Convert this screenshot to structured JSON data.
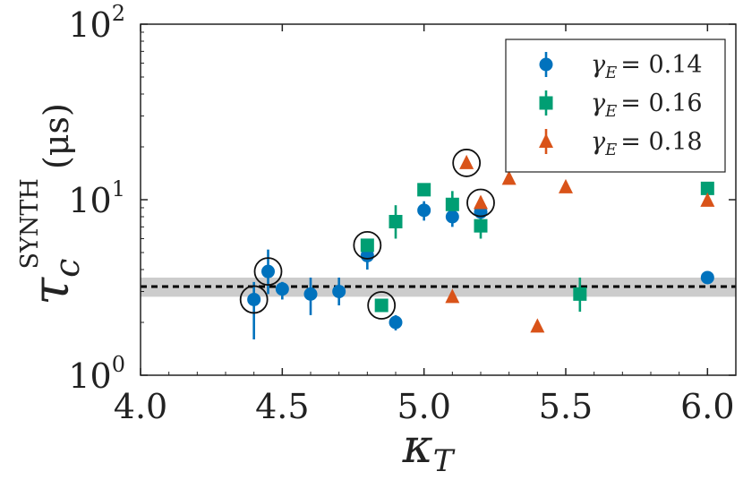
{
  "chart_data": {
    "type": "scatter",
    "title": "",
    "xlabel": "κ_T",
    "ylabel": "τ_c^SYNTH (μs)",
    "xlabel_parts": {
      "main": "κ",
      "sub": "T"
    },
    "ylabel_parts": {
      "main": "τ",
      "sub": "c",
      "sup": "SYNTH",
      "unit": "(μs)"
    },
    "xlim": [
      4.0,
      6.1
    ],
    "ylim": [
      1,
      100
    ],
    "yscale": "log",
    "xticks": [
      "4.0",
      "4.5",
      "5.0",
      "5.5",
      "6.0"
    ],
    "yticks": [
      {
        "base": "10",
        "exp": "0",
        "value": 1
      },
      {
        "base": "10",
        "exp": "1",
        "value": 10
      },
      {
        "base": "10",
        "exp": "2",
        "value": 100
      }
    ],
    "grid": false,
    "legend_position": "top-right",
    "series": [
      {
        "name": "γ_E = 0.14",
        "legend": {
          "symbol": "γ",
          "sub": "E",
          "value": "= 0.14"
        },
        "marker": "circle",
        "color": "#0072BD",
        "points": [
          {
            "x": 4.4,
            "y": 2.7,
            "lo": 1.6,
            "hi": 3.4,
            "circled": true
          },
          {
            "x": 4.45,
            "y": 3.9,
            "lo": 2.9,
            "hi": 5.2,
            "circled": true
          },
          {
            "x": 4.5,
            "y": 3.1,
            "lo": 2.7,
            "hi": 3.4,
            "circled": false
          },
          {
            "x": 4.6,
            "y": 2.9,
            "lo": 2.2,
            "hi": 3.6,
            "circled": false
          },
          {
            "x": 4.7,
            "y": 3.0,
            "lo": 2.5,
            "hi": 3.6,
            "circled": false
          },
          {
            "x": 4.8,
            "y": 4.8,
            "lo": 4.0,
            "hi": 5.6,
            "circled": false
          },
          {
            "x": 4.9,
            "y": 2.0,
            "lo": 1.8,
            "hi": 2.2,
            "circled": false
          },
          {
            "x": 5.0,
            "y": 8.7,
            "lo": 7.6,
            "hi": 9.8,
            "circled": false
          },
          {
            "x": 5.1,
            "y": 8.0,
            "lo": 7.0,
            "hi": 9.2,
            "circled": false
          },
          {
            "x": 5.2,
            "y": 8.5,
            "lo": 7.5,
            "hi": 9.6,
            "circled": false
          },
          {
            "x": 6.0,
            "y": 3.6,
            "lo": 3.4,
            "hi": 3.8,
            "circled": false
          }
        ]
      },
      {
        "name": "γ_E = 0.16",
        "legend": {
          "symbol": "γ",
          "sub": "E",
          "value": "= 0.16"
        },
        "marker": "square",
        "color": "#009E73",
        "points": [
          {
            "x": 4.8,
            "y": 5.5,
            "lo": 5.2,
            "hi": 5.8,
            "circled": true
          },
          {
            "x": 4.85,
            "y": 2.5,
            "lo": 2.4,
            "hi": 2.6,
            "circled": true
          },
          {
            "x": 4.9,
            "y": 7.5,
            "lo": 6.0,
            "hi": 9.3,
            "circled": false
          },
          {
            "x": 5.0,
            "y": 11.4,
            "lo": 10.8,
            "hi": 12.0,
            "circled": false
          },
          {
            "x": 5.1,
            "y": 9.4,
            "lo": 8.0,
            "hi": 11.2,
            "circled": false
          },
          {
            "x": 5.2,
            "y": 7.1,
            "lo": 6.0,
            "hi": 8.3,
            "circled": false
          },
          {
            "x": 5.55,
            "y": 2.9,
            "lo": 2.3,
            "hi": 3.6,
            "circled": false
          },
          {
            "x": 6.0,
            "y": 11.6,
            "lo": 11.0,
            "hi": 12.2,
            "circled": false
          }
        ]
      },
      {
        "name": "γ_E = 0.18",
        "legend": {
          "symbol": "γ",
          "sub": "E",
          "value": "= 0.18"
        },
        "marker": "triangle",
        "color": "#D95319",
        "points": [
          {
            "x": 5.1,
            "y": 2.8,
            "lo": 2.7,
            "hi": 2.9,
            "circled": false
          },
          {
            "x": 5.15,
            "y": 16.2,
            "lo": 15.5,
            "hi": 17.0,
            "circled": true
          },
          {
            "x": 5.2,
            "y": 9.6,
            "lo": 8.8,
            "hi": 10.4,
            "circled": true
          },
          {
            "x": 5.3,
            "y": 13.2,
            "lo": 12.6,
            "hi": 13.8,
            "circled": false
          },
          {
            "x": 5.4,
            "y": 1.9,
            "lo": 1.85,
            "hi": 1.95,
            "circled": false
          },
          {
            "x": 5.5,
            "y": 11.8,
            "lo": 11.2,
            "hi": 12.4,
            "circled": false
          },
          {
            "x": 6.0,
            "y": 9.9,
            "lo": 9.4,
            "hi": 10.4,
            "circled": false
          }
        ]
      }
    ],
    "reference_line": {
      "y": 3.2,
      "band": [
        2.8,
        3.6
      ],
      "style": "dashed",
      "color": "#000000",
      "band_color": "#cccccc"
    }
  }
}
